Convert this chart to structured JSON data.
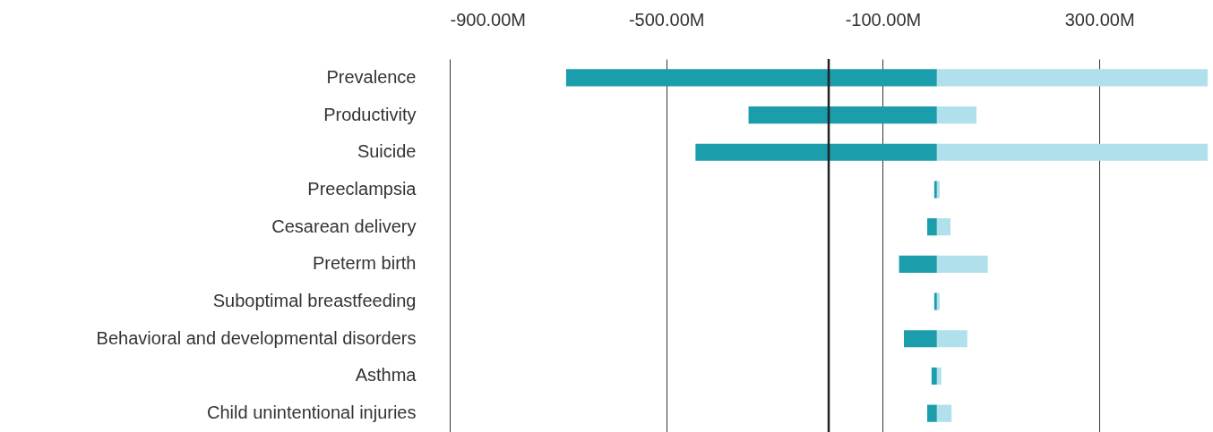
{
  "chart_data": {
    "type": "bar",
    "orientation": "horizontal",
    "stacked": true,
    "grid": "x",
    "categories": [
      "Prevalence",
      "Productivity",
      "Suicide",
      "Preeclampsia",
      "Cesarean delivery",
      "Preterm birth",
      "Suboptimal breastfeeding",
      "Behavioral and developmental disorders",
      "Asthma",
      "Child unintentional injuries"
    ],
    "series": [
      {
        "color": "#1b9dab",
        "values": [
          -685,
          -348,
          -446,
          -5,
          -18,
          -70,
          -5,
          -61,
          -10,
          -18
        ]
      },
      {
        "color": "#b0e0eb",
        "values": [
          500,
          73,
          500,
          5,
          25,
          94,
          5,
          56,
          8,
          27
        ]
      }
    ],
    "xlim": [
      -900,
      500
    ],
    "xticks": [
      {
        "value": -900,
        "label": "-900.00M"
      },
      {
        "value": -500,
        "label": "-500.00M"
      },
      {
        "value": -100,
        "label": "-100.00M"
      },
      {
        "value": 300,
        "label": "300.00M"
      }
    ],
    "ref_lines": [
      {
        "axis": "x",
        "value": -200,
        "color": "#222222"
      }
    ]
  }
}
